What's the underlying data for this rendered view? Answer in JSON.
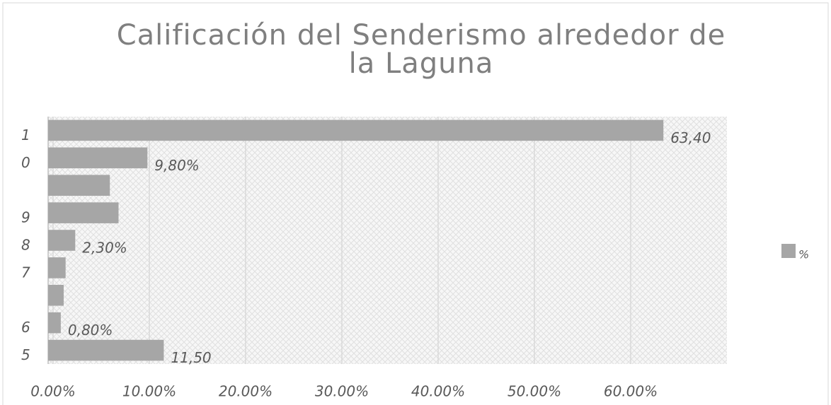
{
  "chart_data": {
    "type": "bar",
    "orientation": "horizontal",
    "title": "Calificación del Senderismo alrededor de la Laguna",
    "categories": [
      "1",
      "0",
      null,
      "9",
      "8",
      "7",
      null,
      "6",
      "5"
    ],
    "series": [
      {
        "name": "%",
        "color": "#a6a6a6",
        "values": [
          63.4,
          9.8,
          5.9,
          6.8,
          2.3,
          1.3,
          1.1,
          0.8,
          11.5
        ],
        "value_labels": [
          "63,40",
          "9,80%",
          null,
          null,
          "2,30%",
          null,
          null,
          "0,80%",
          "11,50"
        ]
      }
    ],
    "xlim": [
      0,
      70
    ],
    "xticks": [
      {
        "value": 0,
        "label": "0.00%"
      },
      {
        "value": 10,
        "label": "10.00%"
      },
      {
        "value": 20,
        "label": "20.00%"
      },
      {
        "value": 30,
        "label": "30.00%"
      },
      {
        "value": 40,
        "label": "40.00%"
      },
      {
        "value": 50,
        "label": "50.00%"
      },
      {
        "value": 60,
        "label": "60.00%"
      }
    ],
    "grid": true,
    "legend": "right"
  }
}
